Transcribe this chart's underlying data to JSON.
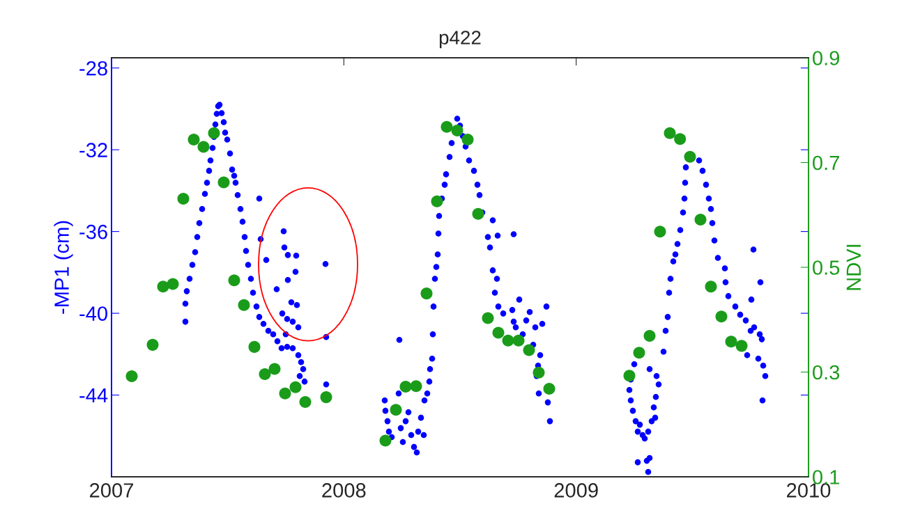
{
  "chart_data": {
    "type": "scatter",
    "title": "p422",
    "ylabel": "-MP1 (cm)",
    "y2label": "NDVI",
    "xlim": [
      2007,
      2010
    ],
    "xticks": [
      2007,
      2008,
      2009,
      2010
    ],
    "ylim": [
      -48,
      -27.5
    ],
    "yticks": [
      -28,
      -32,
      -36,
      -40,
      -44
    ],
    "y2lim": [
      0.1,
      0.9
    ],
    "y2ticks": [
      0.1,
      0.3,
      0.5,
      0.7,
      0.9
    ],
    "grid": false,
    "legend": false,
    "marker": "circle",
    "series": [
      {
        "color": "#0000ff",
        "axis": "y",
        "x": [
          2007.318,
          2007.318,
          2007.324,
          2007.336,
          2007.348,
          2007.36,
          2007.369,
          2007.378,
          2007.39,
          2007.402,
          2007.411,
          2007.42,
          2007.426,
          2007.435,
          2007.441,
          2007.447,
          2007.453,
          2007.459,
          2007.465,
          2007.474,
          2007.483,
          2007.489,
          2007.498,
          2007.51,
          2007.519,
          2007.528,
          2007.534,
          2007.543,
          2007.555,
          2007.564,
          2007.573,
          2007.579,
          2007.588,
          2007.6,
          2007.609,
          2007.624,
          2007.636,
          2007.654,
          2007.675,
          2007.696,
          2007.714,
          2007.636,
          2007.642,
          2007.666,
          2007.741,
          2007.744,
          2007.759,
          2007.795,
          2007.792,
          2007.711,
          2007.759,
          2007.774,
          2007.798,
          2007.921,
          2007.924,
          2007.924,
          2007.735,
          2007.756,
          2007.78,
          2007.804,
          2007.75,
          2007.78,
          2007.804,
          2007.816,
          2007.825,
          2007.81,
          2007.831,
          2007.732,
          2007.756,
          2008.176,
          2008.179,
          2008.188,
          2008.194,
          2008.206,
          2008.236,
          2008.239,
          2008.245,
          2008.254,
          2008.266,
          2008.278,
          2008.29,
          2008.302,
          2008.314,
          2008.32,
          2008.332,
          2008.344,
          2008.347,
          2008.359,
          2008.368,
          2008.371,
          2008.38,
          2008.383,
          2008.386,
          2008.392,
          2008.398,
          2008.404,
          2008.407,
          2008.41,
          2008.422,
          2008.434,
          2008.44,
          2008.455,
          2008.464,
          2008.488,
          2008.5,
          2008.512,
          2008.524,
          2008.539,
          2008.56,
          2008.575,
          2008.584,
          2008.596,
          2008.641,
          2008.662,
          2008.731,
          2008.62,
          2008.629,
          2008.641,
          2008.659,
          2008.65,
          2008.665,
          2008.686,
          2008.725,
          2008.755,
          2008.785,
          2008.8,
          2008.824,
          2008.854,
          2008.872,
          2008.74,
          2008.77,
          2008.815,
          2008.845,
          2008.836,
          2008.83,
          2008.839,
          2008.878,
          2008.887,
          2008.731,
          2009.235,
          2009.229,
          2009.235,
          2009.244,
          2009.256,
          2009.265,
          2009.274,
          2009.286,
          2009.295,
          2009.31,
          2009.325,
          2009.34,
          2009.304,
          2009.316,
          2009.31,
          2009.265,
          2009.25,
          2009.334,
          2009.343,
          2009.355,
          2009.346,
          2009.316,
          2009.376,
          2009.385,
          2009.394,
          2009.4,
          2009.406,
          2009.418,
          2009.427,
          2009.436,
          2009.448,
          2009.46,
          2009.466,
          2009.469,
          2009.472,
          2009.529,
          2009.544,
          2009.559,
          2009.571,
          2009.58,
          2009.586,
          2009.595,
          2009.61,
          2009.64,
          2009.643,
          2009.655,
          2009.685,
          2009.706,
          2009.73,
          2009.751,
          2009.766,
          2009.79,
          2009.799,
          2009.763,
          2009.793,
          2009.754,
          2009.736,
          2009.784,
          2009.805,
          2009.814,
          2009.802
        ],
        "values": [
          -40.41,
          -39.53,
          -38.92,
          -38.31,
          -37.63,
          -37.01,
          -36.27,
          -35.59,
          -34.9,
          -34.16,
          -33.61,
          -33.03,
          -32.52,
          -31.91,
          -31.37,
          -30.76,
          -30.24,
          -29.87,
          -29.8,
          -30.21,
          -30.65,
          -31.16,
          -31.5,
          -32.18,
          -32.97,
          -33.27,
          -33.61,
          -34.22,
          -34.9,
          -35.52,
          -36.27,
          -36.95,
          -37.63,
          -38.31,
          -38.99,
          -39.67,
          -40.18,
          -40.52,
          -40.86,
          -41.03,
          -41.37,
          -34.39,
          -36.37,
          -37.39,
          -35.99,
          -36.78,
          -37.15,
          -37.18,
          -37.97,
          -38.82,
          -38.37,
          -39.46,
          -39.6,
          -37.59,
          -41.16,
          -43.48,
          -40.01,
          -40.28,
          -40.41,
          -40.69,
          -41.03,
          -41.71,
          -42.05,
          -42.39,
          -42.73,
          -43.07,
          -43.34,
          -41.71,
          -41.64,
          -44.26,
          -44.77,
          -45.28,
          -45.79,
          -46.06,
          -43.92,
          -41.3,
          -45.62,
          -46.3,
          -45.28,
          -44.84,
          -45.96,
          -46.54,
          -46.81,
          -45.79,
          -45.11,
          -45.96,
          -44.26,
          -43.92,
          -43.34,
          -42.73,
          -42.22,
          -41.03,
          -39.67,
          -38.31,
          -37.73,
          -37.12,
          -36.1,
          -35.24,
          -34.39,
          -33.71,
          -33.2,
          -32.35,
          -31.67,
          -30.48,
          -30.82,
          -31.33,
          -31.84,
          -32.52,
          -33.03,
          -33.71,
          -34.22,
          -35.07,
          -35.45,
          -36.2,
          -36.13,
          -36.27,
          -36.78,
          -37.9,
          -38.31,
          -38.99,
          -39.67,
          -40.01,
          -39.84,
          -39.33,
          -40.35,
          -39.94,
          -40.69,
          -40.52,
          -39.67,
          -40.69,
          -41.03,
          -41.54,
          -42.05,
          -42.56,
          -43.07,
          -43.92,
          -44.36,
          -45.28,
          -40.41,
          -43.24,
          -43.75,
          -44.26,
          -44.77,
          -45.28,
          -45.79,
          -45.45,
          -45.96,
          -46.13,
          -45.79,
          -45.28,
          -45.11,
          -47.22,
          -47.08,
          -47.76,
          -47.29,
          -42.49,
          -44.6,
          -44.09,
          -43.48,
          -43.07,
          -42.73,
          -41.88,
          -40.86,
          -40.18,
          -38.99,
          -38.31,
          -37.46,
          -37.12,
          -36.61,
          -35.93,
          -35.07,
          -34.39,
          -33.61,
          -32.86,
          -32.52,
          -33.03,
          -33.71,
          -34.39,
          -34.9,
          -35.59,
          -36.44,
          -37.29,
          -37.8,
          -38.48,
          -39.16,
          -39.67,
          -40.07,
          -40.35,
          -40.86,
          -40.69,
          -41.03,
          -41.27,
          -36.88,
          -38.48,
          -39.33,
          -42.05,
          -42.22,
          -42.56,
          -43.07,
          -44.26
        ]
      },
      {
        "color": "#1a9c1a",
        "axis": "y2",
        "x": [
          2007.087,
          2007.177,
          2007.222,
          2007.264,
          2007.309,
          2007.354,
          2007.396,
          2007.441,
          2007.483,
          2007.528,
          2007.57,
          2007.615,
          2007.66,
          2007.702,
          2007.747,
          2007.792,
          2007.834,
          2007.924,
          2008.179,
          2008.224,
          2008.266,
          2008.311,
          2008.356,
          2008.401,
          2008.443,
          2008.488,
          2008.533,
          2008.578,
          2008.62,
          2008.665,
          2008.707,
          2008.752,
          2008.797,
          2008.839,
          2008.884,
          2009.229,
          2009.271,
          2009.316,
          2009.361,
          2009.403,
          2009.447,
          2009.49,
          2009.535,
          2009.58,
          2009.625,
          2009.667,
          2009.712
        ],
        "values": [
          0.292,
          0.352,
          0.463,
          0.468,
          0.631,
          0.744,
          0.73,
          0.756,
          0.662,
          0.475,
          0.428,
          0.348,
          0.296,
          0.306,
          0.259,
          0.271,
          0.243,
          0.252,
          0.169,
          0.228,
          0.272,
          0.273,
          0.45,
          0.626,
          0.768,
          0.761,
          0.744,
          0.602,
          0.403,
          0.375,
          0.36,
          0.36,
          0.342,
          0.299,
          0.268,
          0.293,
          0.337,
          0.369,
          0.568,
          0.756,
          0.745,
          0.711,
          0.591,
          0.463,
          0.406,
          0.358,
          0.35
        ]
      }
    ]
  }
}
